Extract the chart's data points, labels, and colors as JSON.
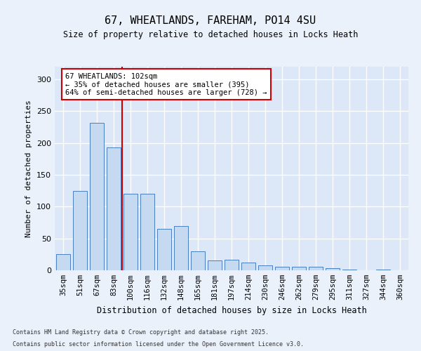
{
  "title1": "67, WHEATLANDS, FAREHAM, PO14 4SU",
  "title2": "Size of property relative to detached houses in Locks Heath",
  "xlabel": "Distribution of detached houses by size in Locks Heath",
  "ylabel": "Number of detached properties",
  "categories": [
    "35sqm",
    "51sqm",
    "67sqm",
    "83sqm",
    "100sqm",
    "116sqm",
    "132sqm",
    "148sqm",
    "165sqm",
    "181sqm",
    "197sqm",
    "214sqm",
    "230sqm",
    "246sqm",
    "262sqm",
    "279sqm",
    "295sqm",
    "311sqm",
    "327sqm",
    "344sqm",
    "360sqm"
  ],
  "values": [
    25,
    125,
    232,
    193,
    120,
    120,
    65,
    70,
    30,
    15,
    17,
    12,
    8,
    5,
    5,
    5,
    3,
    1,
    0,
    1,
    0
  ],
  "bar_color": "#c5d9f1",
  "bar_edge_color": "#4a7ebf",
  "vline_color": "#cc0000",
  "annotation_text": "67 WHEATLANDS: 102sqm\n← 35% of detached houses are smaller (395)\n64% of semi-detached houses are larger (728) →",
  "annotation_box_color": "#ffffff",
  "annotation_box_edge": "#cc0000",
  "footer1": "Contains HM Land Registry data © Crown copyright and database right 2025.",
  "footer2": "Contains public sector information licensed under the Open Government Licence v3.0.",
  "ylim": [
    0,
    320
  ],
  "yticks": [
    0,
    50,
    100,
    150,
    200,
    250,
    300
  ],
  "bg_color": "#eaf1fb",
  "plot_bg": "#dce8f7"
}
